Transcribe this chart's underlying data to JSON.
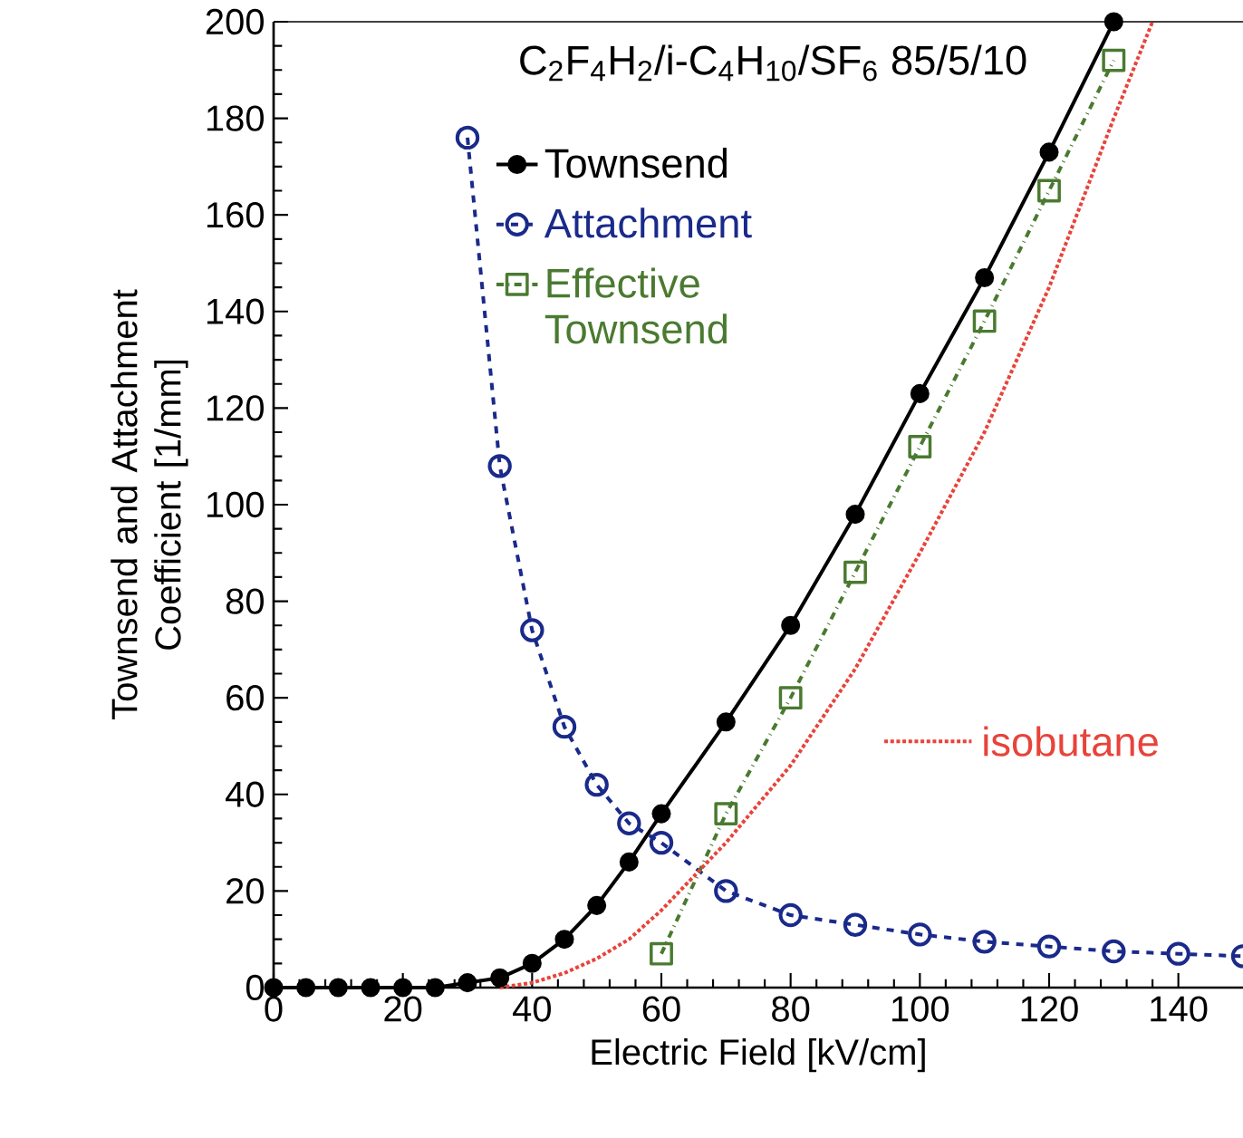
{
  "chart_data": {
    "type": "line",
    "title": "C$_{2}$F$_{4}$H$_{2}$/i-C$_{4}$H$_{10}$/SF$_{6}$ 85/5/10",
    "xlabel": "Electric Field [kV/cm]",
    "ylabel": "Townsend and Attachment Coefficient [1/mm]",
    "xlim": [
      0,
      150
    ],
    "ylim": [
      0,
      200
    ],
    "xticks": [
      0,
      20,
      40,
      60,
      80,
      100,
      120,
      140
    ],
    "yticks": [
      0,
      20,
      40,
      60,
      80,
      100,
      120,
      140,
      160,
      180,
      200
    ],
    "grid": false,
    "legend": "top",
    "series": [
      {
        "name": "Townsend",
        "color": "#000000",
        "marker": "circle",
        "line_style": "solid",
        "x": [
          0,
          5,
          10,
          15,
          20,
          25,
          30,
          35,
          40,
          45,
          50,
          55,
          60,
          70,
          80,
          90,
          100,
          110,
          120,
          130
        ],
        "values": [
          0,
          0,
          0,
          0,
          0,
          0,
          1,
          2,
          5,
          10,
          17,
          26,
          36,
          55,
          75,
          98,
          123,
          147,
          173,
          200
        ]
      },
      {
        "name": "Attachment",
        "color": "#1a2a8a",
        "marker": "circle",
        "line_style": "dashed",
        "x": [
          30,
          35,
          40,
          45,
          50,
          55,
          60,
          70,
          80,
          90,
          100,
          110,
          120,
          130,
          140,
          150
        ],
        "values": [
          176,
          108,
          74,
          54,
          42,
          34,
          30,
          20,
          15,
          13,
          11,
          9.5,
          8.5,
          7.5,
          7,
          6.5
        ]
      },
      {
        "name": "Effective Townsend",
        "color": "#4a7a30",
        "marker": "square",
        "line_style": "dashdot",
        "x": [
          60,
          70,
          80,
          90,
          100,
          110,
          120,
          130
        ],
        "values": [
          7,
          36,
          60,
          86,
          112,
          138,
          165,
          192
        ]
      },
      {
        "name": "isobutane",
        "color": "#e8433a",
        "marker": "none",
        "line_style": "dotted",
        "x": [
          35,
          40,
          45,
          50,
          55,
          60,
          65,
          70,
          80,
          90,
          100,
          110,
          120,
          130,
          136
        ],
        "values": [
          0,
          1,
          3,
          6,
          10,
          16,
          23,
          30,
          46,
          66,
          90,
          115,
          145,
          180,
          200
        ]
      }
    ]
  }
}
